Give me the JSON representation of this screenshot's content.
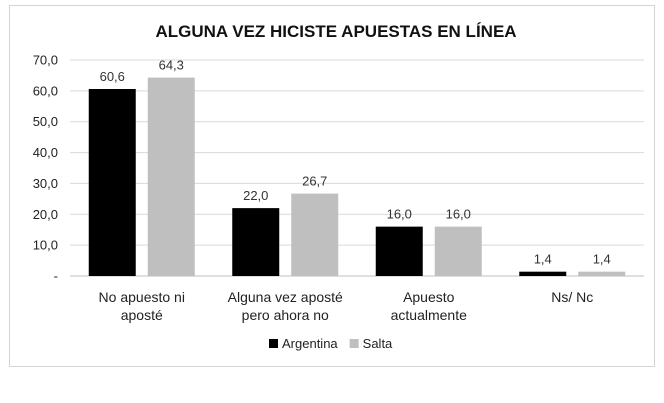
{
  "chart_data": {
    "type": "bar",
    "title": "ALGUNA VEZ HICISTE APUESTAS EN LÍNEA",
    "xlabel": "",
    "ylabel": "",
    "ylim": [
      0,
      70
    ],
    "yticks": [
      "-",
      "10,0",
      "20,0",
      "30,0",
      "40,0",
      "50,0",
      "60,0",
      "70,0"
    ],
    "grid": true,
    "legend_position": "bottom",
    "categories": [
      [
        "No apuesto ni",
        "aposté"
      ],
      [
        "Alguna vez aposté",
        "pero ahora no"
      ],
      [
        "Apuesto",
        "actualmente"
      ],
      [
        "Ns/ Nc"
      ]
    ],
    "series": [
      {
        "name": "Argentina",
        "color": "#000000",
        "values": [
          60.6,
          22.0,
          16.0,
          1.4
        ],
        "labels": [
          "60,6",
          "22,0",
          "16,0",
          "1,4"
        ]
      },
      {
        "name": "Salta",
        "color": "#bfbfbf",
        "values": [
          64.3,
          26.7,
          16.0,
          1.4
        ],
        "labels": [
          "64,3",
          "26,7",
          "16,0",
          "1,4"
        ]
      }
    ]
  }
}
